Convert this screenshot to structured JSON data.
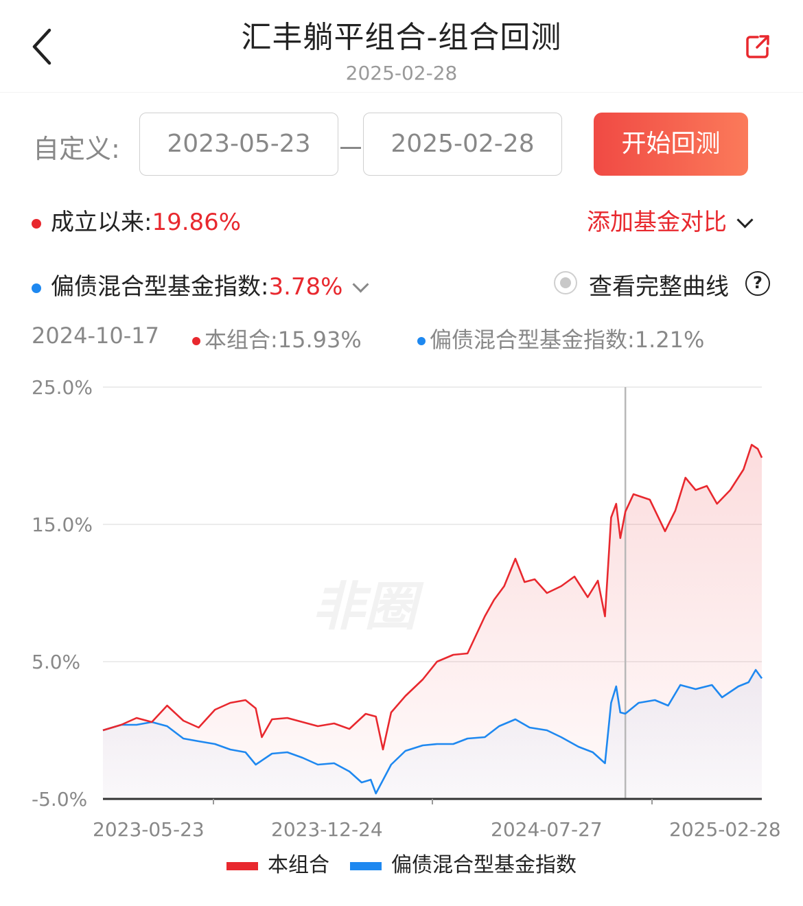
{
  "header": {
    "title": "汇丰躺平组合-组合回测",
    "date": "2025-02-28"
  },
  "controls": {
    "custom_label": "自定义:",
    "start_date": "2023-05-23",
    "end_date": "2025-02-28",
    "start_button": "开始回测"
  },
  "summary": {
    "since_inception_label": "成立以来:",
    "since_inception_value": "19.86%",
    "add_compare": "添加基金对比",
    "benchmark_label": "偏债混合型基金指数:",
    "benchmark_value": "3.78%",
    "full_curve": "查看完整曲线",
    "help": "?"
  },
  "tooltip": {
    "date": "2024-10-17",
    "portfolio": "本组合:15.93%",
    "benchmark": "偏债混合型基金指数:1.21%"
  },
  "colors": {
    "portfolio": "#e8282e",
    "benchmark": "#1e88f0"
  },
  "chart_data": {
    "type": "line",
    "ylim": [
      -5,
      25
    ],
    "yticks": [
      "25.0%",
      "15.0%",
      "5.0%",
      "-5.0%"
    ],
    "ytick_values": [
      25,
      15,
      5,
      -5
    ],
    "xticks": [
      "2023-05-23",
      "2023-12-24",
      "2024-07-27",
      "2025-02-28"
    ],
    "x_start": "2023-05-23",
    "x_end": "2025-02-28",
    "crosshair_date": "2024-10-17",
    "series": [
      {
        "name": "本组合",
        "color": "#e8282e",
        "points": [
          [
            "2023-05-23",
            0.0
          ],
          [
            "2023-06-10",
            0.4
          ],
          [
            "2023-06-25",
            0.9
          ],
          [
            "2023-07-10",
            0.6
          ],
          [
            "2023-07-25",
            1.8
          ],
          [
            "2023-08-10",
            0.7
          ],
          [
            "2023-08-25",
            0.2
          ],
          [
            "2023-09-10",
            1.5
          ],
          [
            "2023-09-25",
            2.0
          ],
          [
            "2023-10-10",
            2.2
          ],
          [
            "2023-10-20",
            1.6
          ],
          [
            "2023-10-26",
            -0.5
          ],
          [
            "2023-11-05",
            0.8
          ],
          [
            "2023-11-20",
            0.9
          ],
          [
            "2023-12-05",
            0.6
          ],
          [
            "2023-12-20",
            0.3
          ],
          [
            "2024-01-05",
            0.5
          ],
          [
            "2024-01-20",
            0.1
          ],
          [
            "2024-02-05",
            1.2
          ],
          [
            "2024-02-15",
            1.0
          ],
          [
            "2024-02-22",
            -1.4
          ],
          [
            "2024-03-01",
            1.3
          ],
          [
            "2024-03-15",
            2.5
          ],
          [
            "2024-04-01",
            3.7
          ],
          [
            "2024-04-15",
            5.0
          ],
          [
            "2024-05-01",
            5.5
          ],
          [
            "2024-05-15",
            5.6
          ],
          [
            "2024-06-01",
            8.3
          ],
          [
            "2024-06-10",
            9.5
          ],
          [
            "2024-06-20",
            10.5
          ],
          [
            "2024-07-01",
            12.5
          ],
          [
            "2024-07-10",
            10.8
          ],
          [
            "2024-07-20",
            11.0
          ],
          [
            "2024-08-01",
            10.0
          ],
          [
            "2024-08-15",
            10.5
          ],
          [
            "2024-08-28",
            11.2
          ],
          [
            "2024-09-10",
            9.7
          ],
          [
            "2024-09-20",
            10.9
          ],
          [
            "2024-09-27",
            8.3
          ],
          [
            "2024-10-03",
            15.5
          ],
          [
            "2024-10-08",
            16.5
          ],
          [
            "2024-10-12",
            14.0
          ],
          [
            "2024-10-17",
            15.93
          ],
          [
            "2024-10-25",
            17.2
          ],
          [
            "2024-11-10",
            16.8
          ],
          [
            "2024-11-25",
            14.5
          ],
          [
            "2024-12-05",
            16.0
          ],
          [
            "2024-12-15",
            18.4
          ],
          [
            "2024-12-25",
            17.5
          ],
          [
            "2025-01-05",
            17.8
          ],
          [
            "2025-01-15",
            16.5
          ],
          [
            "2025-01-28",
            17.5
          ],
          [
            "2025-02-10",
            19.0
          ],
          [
            "2025-02-18",
            20.8
          ],
          [
            "2025-02-24",
            20.5
          ],
          [
            "2025-02-28",
            19.86
          ]
        ]
      },
      {
        "name": "偏债混合型基金指数",
        "color": "#1e88f0",
        "points": [
          [
            "2023-05-23",
            0.0
          ],
          [
            "2023-06-10",
            0.4
          ],
          [
            "2023-06-25",
            0.4
          ],
          [
            "2023-07-10",
            0.6
          ],
          [
            "2023-07-25",
            0.3
          ],
          [
            "2023-08-10",
            -0.6
          ],
          [
            "2023-08-25",
            -0.8
          ],
          [
            "2023-09-10",
            -1.0
          ],
          [
            "2023-09-25",
            -1.4
          ],
          [
            "2023-10-10",
            -1.6
          ],
          [
            "2023-10-20",
            -2.5
          ],
          [
            "2023-11-05",
            -1.7
          ],
          [
            "2023-11-20",
            -1.6
          ],
          [
            "2023-12-05",
            -2.0
          ],
          [
            "2023-12-20",
            -2.5
          ],
          [
            "2024-01-05",
            -2.4
          ],
          [
            "2024-01-20",
            -3.0
          ],
          [
            "2024-02-01",
            -3.8
          ],
          [
            "2024-02-10",
            -3.6
          ],
          [
            "2024-02-15",
            -4.6
          ],
          [
            "2024-03-01",
            -2.5
          ],
          [
            "2024-03-15",
            -1.5
          ],
          [
            "2024-04-01",
            -1.1
          ],
          [
            "2024-04-15",
            -1.0
          ],
          [
            "2024-05-01",
            -1.0
          ],
          [
            "2024-05-15",
            -0.6
          ],
          [
            "2024-06-01",
            -0.5
          ],
          [
            "2024-06-15",
            0.3
          ],
          [
            "2024-07-01",
            0.8
          ],
          [
            "2024-07-15",
            0.2
          ],
          [
            "2024-08-01",
            0.0
          ],
          [
            "2024-08-15",
            -0.5
          ],
          [
            "2024-09-01",
            -1.2
          ],
          [
            "2024-09-15",
            -1.6
          ],
          [
            "2024-09-27",
            -2.4
          ],
          [
            "2024-10-03",
            2.0
          ],
          [
            "2024-10-08",
            3.2
          ],
          [
            "2024-10-12",
            1.3
          ],
          [
            "2024-10-17",
            1.21
          ],
          [
            "2024-10-30",
            2.0
          ],
          [
            "2024-11-15",
            2.2
          ],
          [
            "2024-11-28",
            1.8
          ],
          [
            "2024-12-10",
            3.3
          ],
          [
            "2024-12-25",
            3.0
          ],
          [
            "2025-01-10",
            3.3
          ],
          [
            "2025-01-20",
            2.4
          ],
          [
            "2025-02-05",
            3.2
          ],
          [
            "2025-02-15",
            3.5
          ],
          [
            "2025-02-22",
            4.4
          ],
          [
            "2025-02-28",
            3.78
          ]
        ]
      }
    ]
  },
  "legend": {
    "portfolio": "本组合",
    "benchmark": "偏债混合型基金指数"
  }
}
